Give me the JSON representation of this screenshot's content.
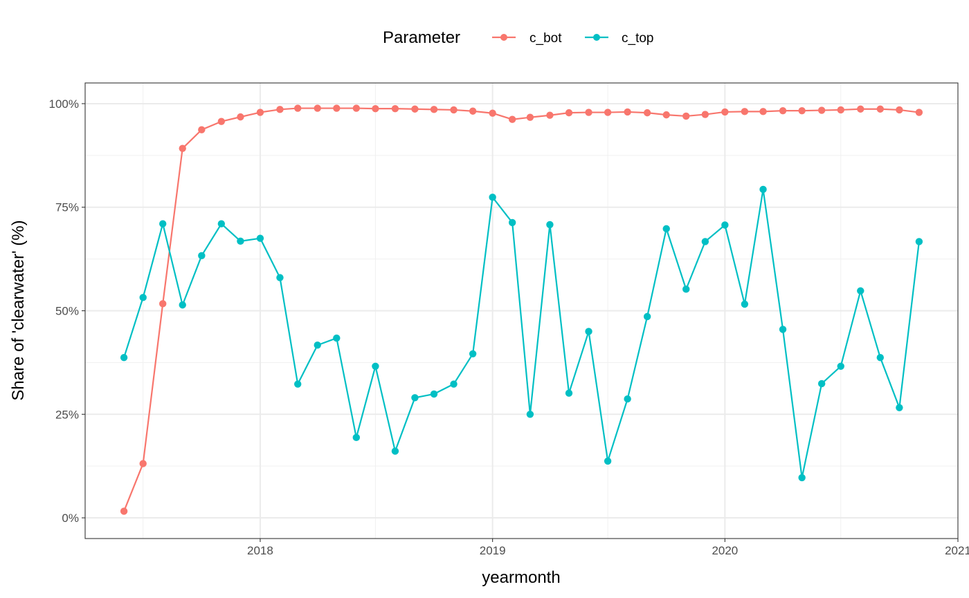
{
  "chart_data": {
    "type": "line",
    "xlabel": "yearmonth",
    "ylabel": "Share of 'clearwater' (%)",
    "legend": {
      "title": "Parameter",
      "position": "top"
    },
    "xlim": [
      "2017-04-01",
      "2021-01-01"
    ],
    "ylim": [
      -0.05,
      1.05
    ],
    "x_ticks": [
      "2018-01-01",
      "2019-01-01",
      "2020-01-01",
      "2021-01-01"
    ],
    "x_tick_labels": [
      "2018",
      "2019",
      "2020",
      "2021"
    ],
    "y_ticks": [
      0,
      0.25,
      0.5,
      0.75,
      1.0
    ],
    "y_tick_labels": [
      "0%",
      "25%",
      "50%",
      "75%",
      "100%"
    ],
    "grid": true,
    "x": [
      "2017-06-01",
      "2017-07-01",
      "2017-08-01",
      "2017-09-01",
      "2017-10-01",
      "2017-11-01",
      "2017-12-01",
      "2018-01-01",
      "2018-02-01",
      "2018-03-01",
      "2018-04-01",
      "2018-05-01",
      "2018-06-01",
      "2018-07-01",
      "2018-08-01",
      "2018-09-01",
      "2018-10-01",
      "2018-11-01",
      "2018-12-01",
      "2019-01-01",
      "2019-02-01",
      "2019-03-01",
      "2019-04-01",
      "2019-05-01",
      "2019-06-01",
      "2019-07-01",
      "2019-08-01",
      "2019-09-01",
      "2019-10-01",
      "2019-11-01",
      "2019-12-01",
      "2020-01-01",
      "2020-02-01",
      "2020-03-01",
      "2020-04-01",
      "2020-05-01",
      "2020-06-01",
      "2020-07-01",
      "2020-08-01",
      "2020-09-01",
      "2020-10-01",
      "2020-11-01"
    ],
    "series": [
      {
        "name": "c_bot",
        "color": "#F8766D",
        "values": [
          0.016,
          0.131,
          0.517,
          0.892,
          0.937,
          0.957,
          0.968,
          0.979,
          0.986,
          0.989,
          0.989,
          0.989,
          0.989,
          0.988,
          0.988,
          0.987,
          0.986,
          0.985,
          0.982,
          0.977,
          0.962,
          0.967,
          0.972,
          0.978,
          0.979,
          0.979,
          0.98,
          0.978,
          0.973,
          0.97,
          0.974,
          0.98,
          0.981,
          0.981,
          0.983,
          0.983,
          0.984,
          0.985,
          0.987,
          0.987,
          0.985,
          0.979
        ]
      },
      {
        "name": "c_top",
        "color": "#00BFC4",
        "values": [
          0.387,
          0.532,
          0.71,
          0.514,
          0.633,
          0.71,
          0.668,
          0.675,
          0.58,
          0.323,
          0.417,
          0.434,
          0.194,
          0.366,
          0.161,
          0.29,
          0.299,
          0.323,
          0.396,
          0.774,
          0.713,
          0.25,
          0.708,
          0.301,
          0.45,
          0.137,
          0.287,
          0.486,
          0.698,
          0.552,
          0.667,
          0.707,
          0.516,
          0.793,
          0.455,
          0.097,
          0.324,
          0.366,
          0.548,
          0.387,
          0.266,
          0.667
        ]
      }
    ]
  }
}
